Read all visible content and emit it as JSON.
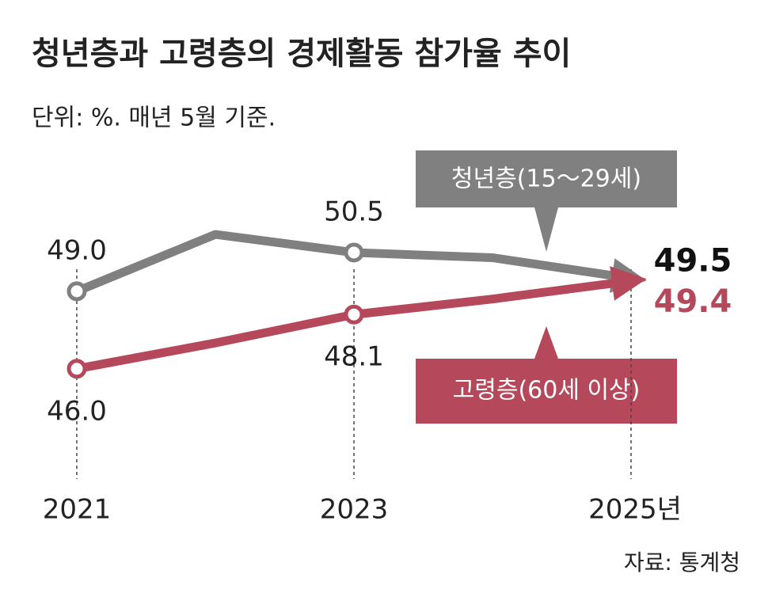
{
  "chart_data": {
    "type": "line",
    "title": "청년층과 고령층의 경제활동 참가율 추이",
    "subtitle": "단위: %. 매년 5월 기준.",
    "source": "자료: 통계청",
    "categories": [
      "2021",
      null,
      "2023",
      null,
      "2025년"
    ],
    "ylim": [
      44,
      52
    ],
    "series": [
      {
        "name": "청년층(15～29세)",
        "color": "#808080",
        "values": [
          49.0,
          51.2,
          50.5,
          50.3,
          49.5
        ],
        "value_labels": [
          "49.0",
          null,
          "50.5",
          null,
          "49.5"
        ]
      },
      {
        "name": "고령층(60세 이상)",
        "color": "#b5495b",
        "values": [
          46.0,
          47.0,
          48.1,
          48.7,
          49.4
        ],
        "value_labels": [
          "46.0",
          null,
          "48.1",
          null,
          "49.4"
        ]
      }
    ]
  }
}
